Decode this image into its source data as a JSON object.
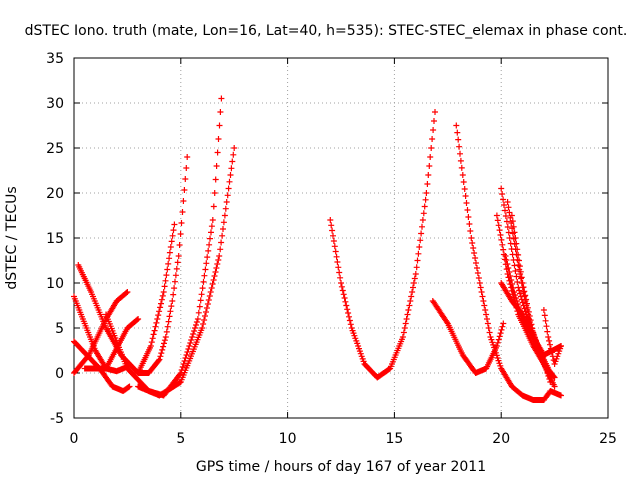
{
  "chart_data": {
    "type": "scatter",
    "title": "dSTEC Iono. truth (mate, Lon=16, Lat=40, h=535): STEC-STEC_elemax in phase cont.",
    "xlabel": "GPS time / hours of day 167 of year 2011",
    "ylabel": "dSTEC  / TECUs",
    "xlim": [
      0,
      25
    ],
    "ylim": [
      -5,
      35
    ],
    "xticks": [
      0,
      5,
      10,
      15,
      20,
      25
    ],
    "yticks": [
      -5,
      0,
      5,
      10,
      15,
      20,
      25,
      30,
      35
    ],
    "grid": true,
    "legend": false,
    "marker": "+",
    "color": "#ff0000",
    "series": [
      {
        "x": [
          0.0,
          0.5,
          1.0,
          1.5,
          2.0,
          2.5
        ],
        "values": [
          8.5,
          5.5,
          2.5,
          0.5,
          0.2,
          0.7
        ]
      },
      {
        "x": [
          0.2,
          0.8,
          1.5,
          2.2,
          3.0,
          3.5,
          4.0,
          4.3,
          4.6,
          4.9,
          5.3
        ],
        "values": [
          12.0,
          9.0,
          5.0,
          2.0,
          0.0,
          0.0,
          1.5,
          4.0,
          8.0,
          13.0,
          24.0
        ]
      },
      {
        "x": [
          0.0,
          0.6,
          1.2,
          1.8,
          2.3,
          2.6
        ],
        "values": [
          3.5,
          2.0,
          0.5,
          -1.5,
          -2.0,
          -1.5
        ]
      },
      {
        "x": [
          0.0,
          0.7,
          1.5,
          2.0,
          2.5
        ],
        "values": [
          0.0,
          2.0,
          6.0,
          8.0,
          9.0
        ]
      },
      {
        "x": [
          0.5,
          1.5,
          2.5,
          3.0
        ],
        "values": [
          0.5,
          0.5,
          5.0,
          6.0
        ]
      },
      {
        "x": [
          1.5,
          2.5,
          3.5,
          4.2,
          5.0,
          5.8,
          6.5,
          6.9
        ],
        "values": [
          6.5,
          0.5,
          -2.0,
          -2.5,
          0.0,
          6.0,
          17.0,
          30.5
        ]
      },
      {
        "x": [
          3.0,
          4.0,
          5.0,
          6.0,
          6.8,
          7.5
        ],
        "values": [
          -1.5,
          -2.5,
          -1.0,
          5.0,
          13.0,
          25.0
        ]
      },
      {
        "x": [
          3.0,
          3.6,
          4.2,
          4.7
        ],
        "values": [
          0.0,
          3.0,
          9.0,
          16.5
        ]
      },
      {
        "x": [
          12.0,
          12.5,
          13.0,
          13.6,
          14.2,
          14.8,
          15.4,
          16.0,
          16.5,
          16.9
        ],
        "values": [
          17.0,
          10.0,
          5.0,
          1.0,
          -0.5,
          0.5,
          4.0,
          11.0,
          20.0,
          29.0
        ]
      },
      {
        "x": [
          16.8,
          17.5,
          18.2,
          18.8,
          19.3,
          19.8,
          20.1
        ],
        "values": [
          8.0,
          5.5,
          2.0,
          0.0,
          0.5,
          3.0,
          5.5
        ]
      },
      {
        "x": [
          17.9,
          18.2,
          18.6,
          19.0,
          19.5,
          20.0,
          20.5,
          21.0,
          21.5,
          22.0,
          22.3,
          22.8
        ],
        "values": [
          27.5,
          22.0,
          15.0,
          10.0,
          4.0,
          0.5,
          -1.5,
          -2.5,
          -3.0,
          -3.0,
          -2.0,
          -2.5
        ]
      },
      {
        "x": [
          19.8,
          20.3,
          20.8,
          21.5,
          22.0,
          22.5
        ],
        "values": [
          17.5,
          11.0,
          6.5,
          3.0,
          1.0,
          -0.5
        ]
      },
      {
        "x": [
          20.0,
          20.4,
          20.8,
          21.3,
          21.8,
          22.3
        ],
        "values": [
          20.5,
          15.0,
          9.5,
          5.5,
          2.5,
          0.0
        ]
      },
      {
        "x": [
          20.3,
          20.8,
          21.3,
          21.8,
          22.3
        ],
        "values": [
          19.0,
          12.0,
          6.0,
          2.0,
          -0.5
        ]
      },
      {
        "x": [
          20.5,
          21.0,
          21.5,
          22.0,
          22.5
        ],
        "values": [
          17.5,
          10.0,
          4.5,
          1.0,
          -1.5
        ]
      },
      {
        "x": [
          20.2,
          20.6,
          21.0,
          21.5,
          22.0,
          22.8
        ],
        "values": [
          13.0,
          9.0,
          6.0,
          4.0,
          2.0,
          3.0
        ]
      },
      {
        "x": [
          20.0,
          20.5,
          21.0,
          21.5,
          21.9,
          22.3
        ],
        "values": [
          10.0,
          8.0,
          6.5,
          4.0,
          2.0,
          -1.0
        ]
      },
      {
        "x": [
          22.0,
          22.2,
          22.5,
          22.8
        ],
        "values": [
          7.0,
          4.0,
          1.0,
          3.0
        ]
      }
    ]
  }
}
